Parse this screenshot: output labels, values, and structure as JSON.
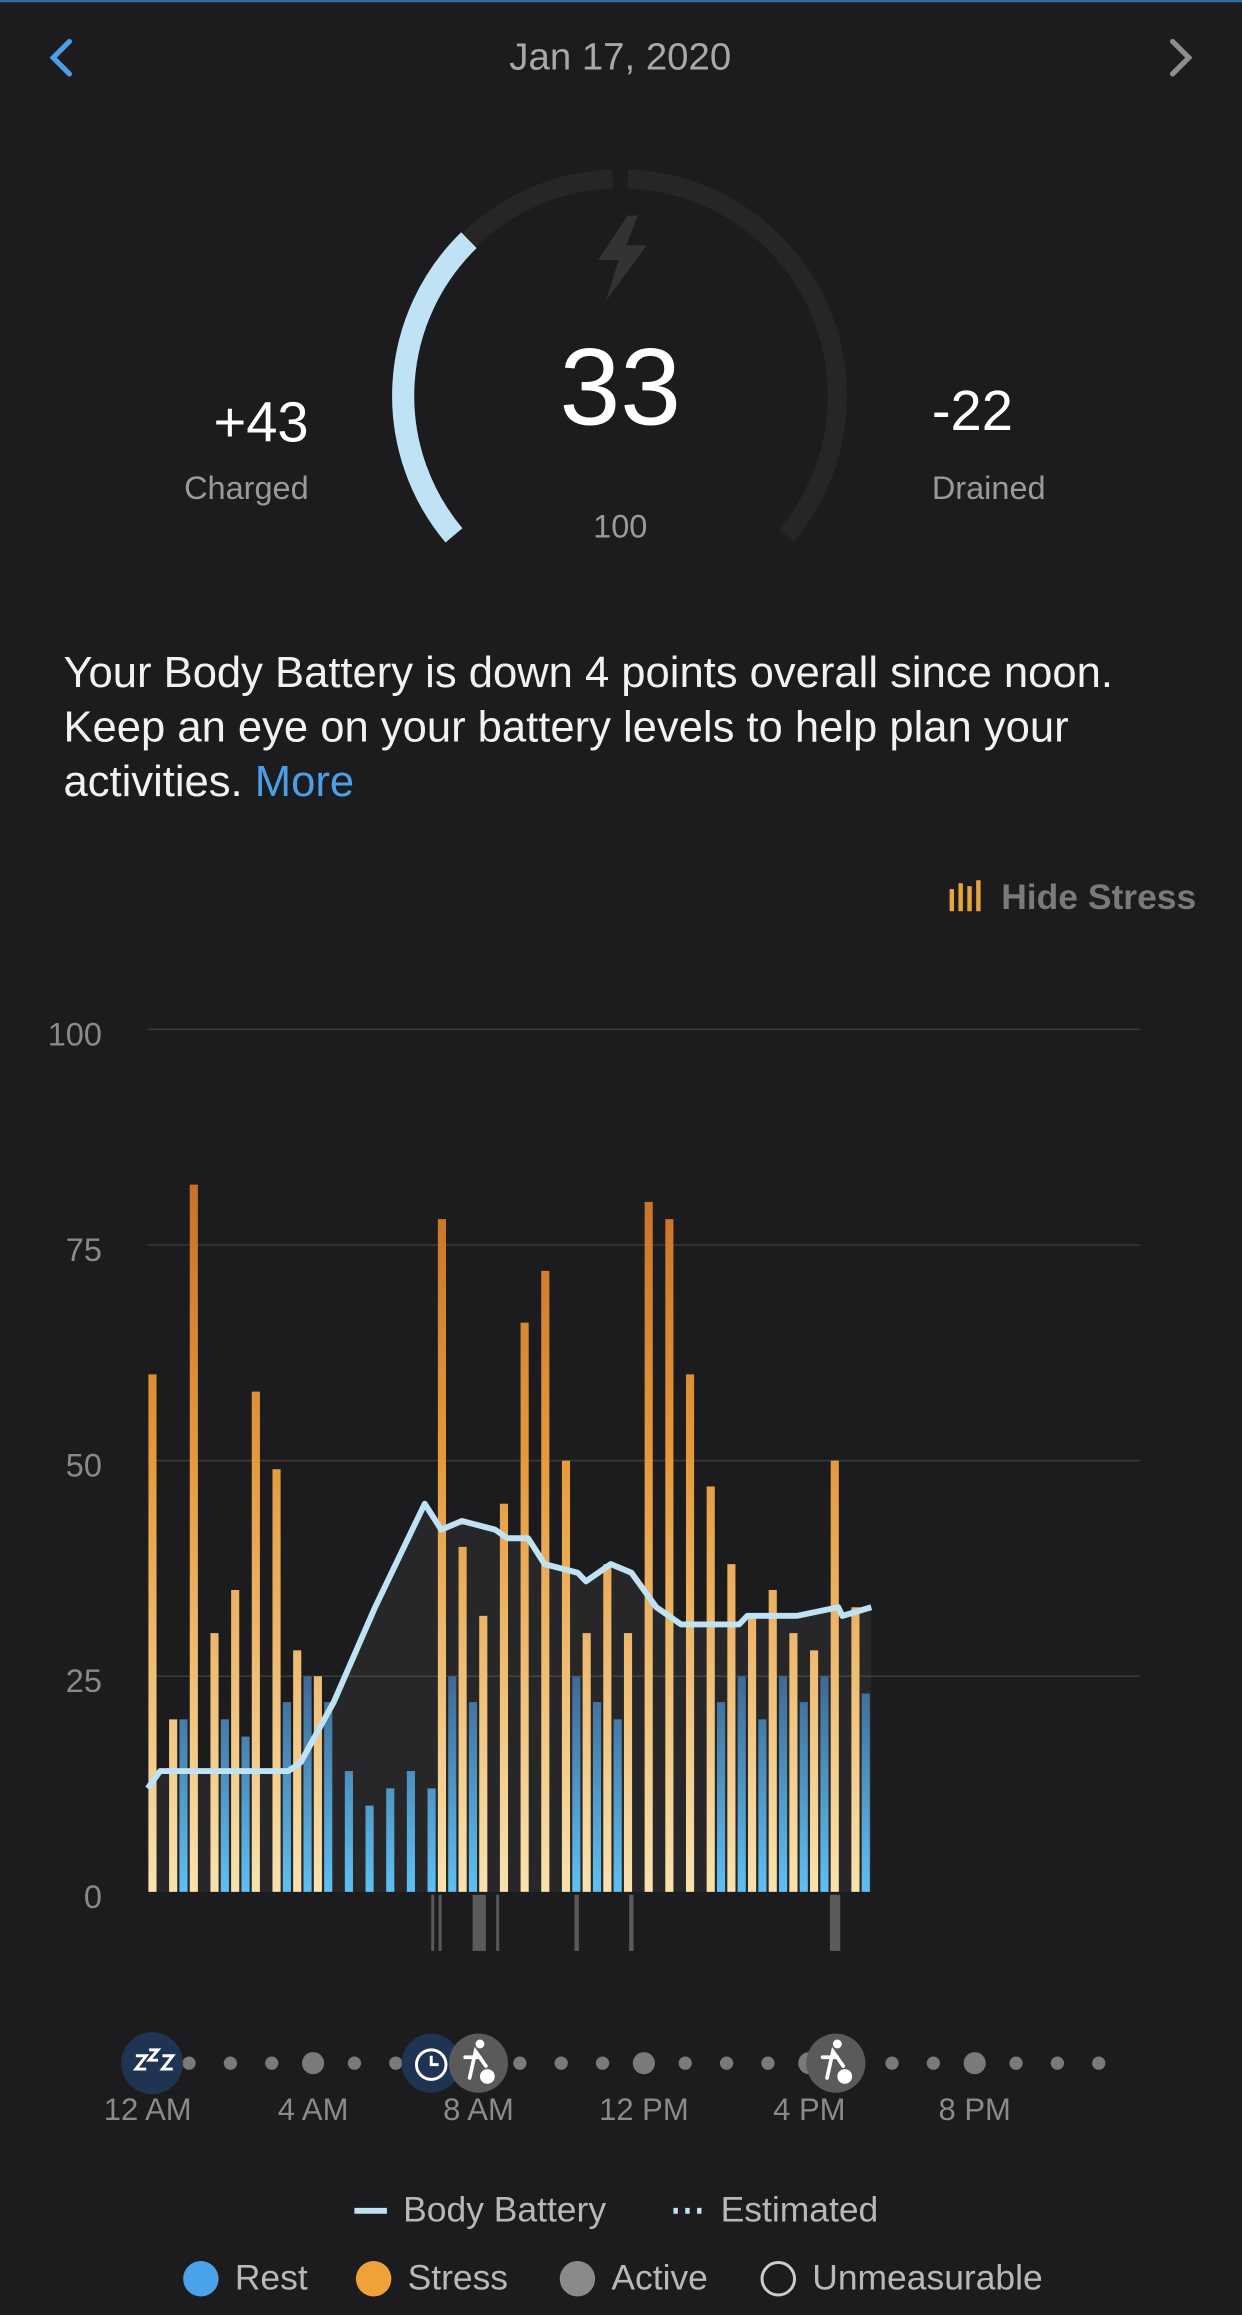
{
  "header": {
    "date": "Jan 17, 2020"
  },
  "gauge": {
    "value": 33,
    "max": 100,
    "charged": "+43",
    "charged_label": "Charged",
    "drained": -22,
    "drained_label": "Drained"
  },
  "description": {
    "text": "Your Body Battery is down 4 points overall since noon. Keep an eye on your battery levels to help plan your activities.",
    "link": "More"
  },
  "toggle": "Hide Stress",
  "chart_data": {
    "type": "bar",
    "xlim": [
      0,
      24
    ],
    "xticks": [
      {
        "value": 0,
        "label": "12 AM"
      },
      {
        "value": 4,
        "label": "4 AM"
      },
      {
        "value": 8,
        "label": "8 AM"
      },
      {
        "value": 12,
        "label": "12 PM"
      },
      {
        "value": 16,
        "label": "4 PM"
      },
      {
        "value": 20,
        "label": "8 PM"
      }
    ],
    "ylim": [
      0,
      100
    ],
    "yticks": [
      0,
      25,
      50,
      75,
      100
    ],
    "grid": true,
    "x": [
      0,
      0.5,
      1,
      1.5,
      2,
      2.5,
      3,
      3.5,
      4,
      4.5,
      5,
      5.5,
      6,
      6.5,
      7,
      7.5,
      8,
      8.5,
      9,
      9.5,
      10,
      10.5,
      11,
      11.5,
      12,
      12.5,
      13,
      13.5,
      14,
      14.5,
      15,
      15.5,
      16,
      16.5,
      17
    ],
    "series": [
      {
        "name": "Stress",
        "color": "#f0a23a",
        "values": [
          60,
          20,
          82,
          30,
          35,
          58,
          49,
          28,
          25,
          null,
          null,
          null,
          null,
          null,
          78,
          40,
          32,
          45,
          66,
          72,
          50,
          30,
          38,
          30,
          80,
          78,
          60,
          47,
          38,
          32,
          35,
          30,
          28,
          50,
          33
        ]
      },
      {
        "name": "Rest",
        "color": "#4aa3e8",
        "values": [
          null,
          20,
          null,
          20,
          18,
          null,
          22,
          25,
          22,
          14,
          10,
          12,
          14,
          12,
          25,
          22,
          null,
          null,
          null,
          null,
          25,
          22,
          20,
          null,
          null,
          null,
          null,
          22,
          25,
          20,
          25,
          22,
          25,
          null,
          23
        ]
      }
    ],
    "line": {
      "name": "Body Battery",
      "color": "#bfe3f5",
      "x": [
        0,
        0.3,
        3.4,
        3.7,
        4.5,
        5.5,
        6.5,
        6.7,
        7.1,
        7.6,
        8.4,
        8.7,
        9.2,
        9.6,
        10.4,
        10.6,
        11.2,
        11.7,
        12.3,
        12.9,
        14.3,
        14.5,
        15.7,
        16.7,
        16.8,
        17.5
      ],
      "values": [
        12,
        14,
        14,
        15,
        22,
        33,
        43,
        45,
        42,
        43,
        42,
        41,
        41,
        38,
        37,
        36,
        38,
        37,
        33,
        31,
        31,
        32,
        32,
        33,
        32,
        33
      ]
    },
    "legend_extra": [
      {
        "name": "Estimated",
        "color": "#bfe3f5"
      },
      {
        "name": "Active",
        "color": "#8a8a8a"
      },
      {
        "name": "Unmeasurable",
        "color": "#cccccc"
      }
    ]
  }
}
